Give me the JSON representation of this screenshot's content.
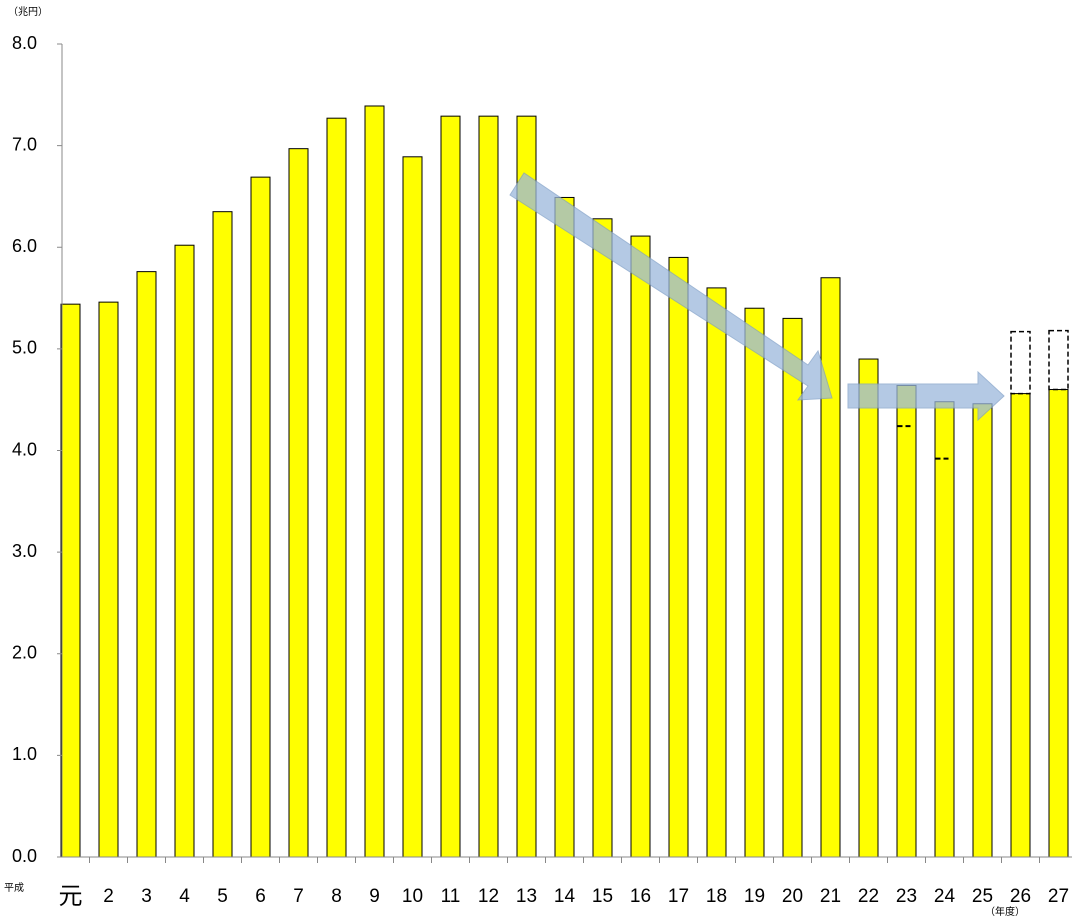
{
  "chart_data": {
    "type": "bar",
    "y_unit": "（兆円）",
    "x_prefix": "平成",
    "x_unit": "（年度）",
    "categories": [
      "元",
      "2",
      "3",
      "4",
      "5",
      "6",
      "7",
      "8",
      "9",
      "10",
      "11",
      "12",
      "13",
      "14",
      "15",
      "16",
      "17",
      "18",
      "19",
      "20",
      "21",
      "22",
      "23",
      "24",
      "25",
      "26",
      "27"
    ],
    "values": [
      5.44,
      5.46,
      5.76,
      6.02,
      6.35,
      6.69,
      6.97,
      7.27,
      7.39,
      6.89,
      7.29,
      7.29,
      7.29,
      6.49,
      6.28,
      6.11,
      5.9,
      5.6,
      5.4,
      5.3,
      5.7,
      4.9,
      4.64,
      4.48,
      4.46,
      4.56,
      4.6
    ],
    "dashed_tops": [
      null,
      null,
      null,
      null,
      null,
      null,
      null,
      null,
      null,
      null,
      null,
      null,
      null,
      null,
      null,
      null,
      null,
      null,
      null,
      null,
      null,
      null,
      null,
      null,
      null,
      5.17,
      5.18
    ],
    "dash_marks": [
      null,
      null,
      null,
      null,
      null,
      null,
      null,
      null,
      null,
      null,
      null,
      null,
      null,
      null,
      null,
      null,
      null,
      null,
      null,
      null,
      null,
      null,
      4.24,
      3.92,
      null,
      null,
      null
    ],
    "color": "#ffff00",
    "ylim": [
      0,
      8
    ],
    "yticks": [
      {
        "value": 0,
        "label": "0.0"
      },
      {
        "value": 1,
        "label": "1.0"
      },
      {
        "value": 2,
        "label": "2.0"
      },
      {
        "value": 3,
        "label": "3.0"
      },
      {
        "value": 4,
        "label": "4.0"
      },
      {
        "value": 5,
        "label": "5.0"
      },
      {
        "value": 6,
        "label": "6.0"
      },
      {
        "value": 7,
        "label": "7.0"
      },
      {
        "value": 8,
        "label": "8.0"
      }
    ]
  }
}
